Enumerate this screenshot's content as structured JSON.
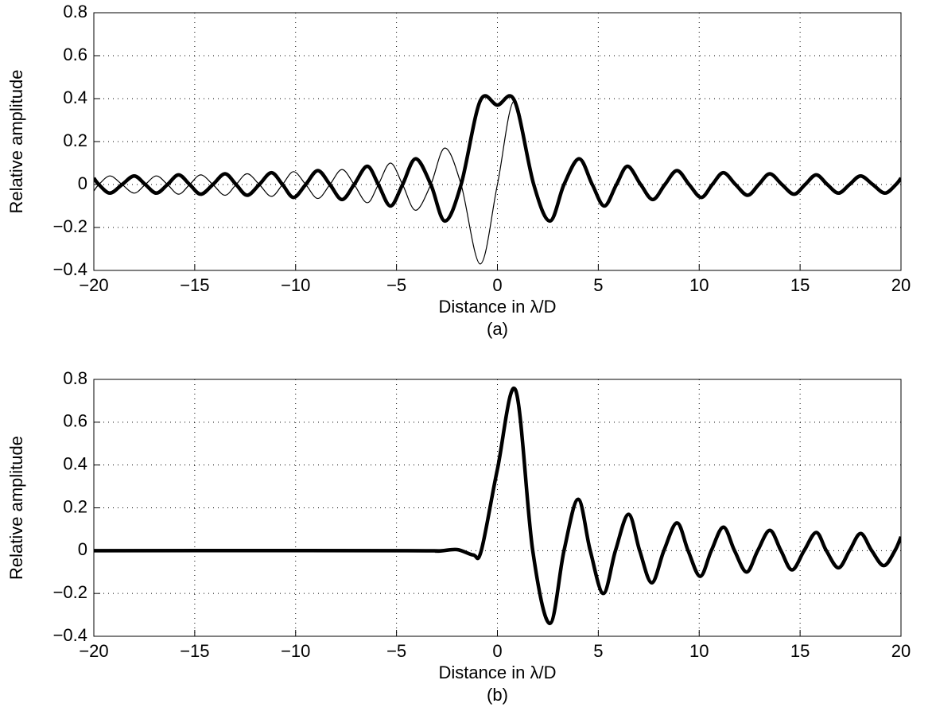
{
  "chart_data": [
    {
      "type": "line",
      "xlabel": "Distance in λ/D",
      "ylabel": "Relative amplitude",
      "caption": "(a)",
      "xlim": [
        -20,
        20
      ],
      "ylim": [
        -0.4,
        0.8
      ],
      "grid": true,
      "xticks": [
        {
          "value": -20,
          "label": "−20"
        },
        {
          "value": -15,
          "label": "−15"
        },
        {
          "value": -10,
          "label": "−10"
        },
        {
          "value": -5,
          "label": "−5"
        },
        0,
        5,
        10,
        15,
        20
      ],
      "yticks": [
        {
          "value": -0.4,
          "label": "−0.4"
        },
        {
          "value": -0.2,
          "label": "−0.2"
        },
        0,
        0.2,
        0.4,
        0.6,
        0.8
      ],
      "x": [
        -20,
        -19.75,
        -19.2,
        -18.6,
        -18,
        -17.45,
        -16.9,
        -16.35,
        -15.8,
        -15.25,
        -14.7,
        -14.1,
        -13.5,
        -12.95,
        -12.4,
        -11.8,
        -11.2,
        -10.65,
        -10.1,
        -9.5,
        -8.9,
        -8.3,
        -7.7,
        -7.1,
        -6.45,
        -5.9,
        -5.3,
        -4.7,
        -4.05,
        -3.3,
        -2.6,
        -1.8,
        -0.85,
        0,
        0.85,
        1.8,
        2.6,
        3.3,
        4.05,
        4.7,
        5.3,
        5.9,
        6.45,
        7.1,
        7.7,
        8.3,
        8.9,
        9.5,
        10.1,
        10.65,
        11.2,
        11.8,
        12.4,
        12.95,
        13.5,
        14.1,
        14.7,
        15.25,
        15.8,
        16.35,
        16.9,
        17.45,
        18,
        18.6,
        19.2,
        19.75,
        20
      ],
      "series": [
        {
          "color": "#000000",
          "width": 1.2,
          "values": [
            -0.03,
            0,
            0.04,
            0,
            -0.04,
            0,
            0.04,
            0,
            -0.045,
            0,
            0.045,
            0,
            -0.05,
            0,
            0.05,
            0,
            -0.055,
            0,
            0.06,
            0,
            -0.065,
            0,
            0.07,
            0,
            -0.085,
            0,
            0.1,
            0,
            -0.12,
            0,
            0.17,
            0,
            -0.37,
            0,
            0.39,
            0,
            -0.17,
            0,
            0.12,
            0,
            -0.1,
            0,
            0.085,
            0,
            -0.07,
            0,
            0.065,
            0,
            -0.06,
            0,
            0.055,
            0,
            -0.05,
            0,
            0.05,
            0,
            -0.045,
            0,
            0.045,
            0,
            -0.04,
            0,
            0.04,
            0,
            -0.04,
            0,
            0.03
          ]
        },
        {
          "color": "#000000",
          "width": 4.5,
          "values": [
            0.03,
            0,
            -0.04,
            0,
            0.04,
            0,
            -0.04,
            0,
            0.045,
            0,
            -0.045,
            0,
            0.05,
            0,
            -0.05,
            0,
            0.055,
            0,
            -0.06,
            0,
            0.065,
            0,
            -0.07,
            0,
            0.085,
            0,
            -0.1,
            0,
            0.12,
            0,
            -0.17,
            0,
            0.39,
            0.37,
            0.39,
            0,
            -0.17,
            0,
            0.12,
            0,
            -0.1,
            0,
            0.085,
            0,
            -0.07,
            0,
            0.065,
            0,
            -0.06,
            0,
            0.055,
            0,
            -0.05,
            0,
            0.05,
            0,
            -0.045,
            0,
            0.045,
            0,
            -0.04,
            0,
            0.04,
            0,
            -0.04,
            0,
            0.03
          ]
        }
      ]
    },
    {
      "type": "line",
      "xlabel": "Distance in λ/D",
      "ylabel": "Relative amplitude",
      "caption": "(b)",
      "xlim": [
        -20,
        20
      ],
      "ylim": [
        -0.4,
        0.8
      ],
      "grid": true,
      "xticks": [
        {
          "value": -20,
          "label": "−20"
        },
        {
          "value": -15,
          "label": "−15"
        },
        {
          "value": -10,
          "label": "−10"
        },
        {
          "value": -5,
          "label": "−5"
        },
        0,
        5,
        10,
        15,
        20
      ],
      "yticks": [
        {
          "value": -0.4,
          "label": "−0.4"
        },
        {
          "value": -0.2,
          "label": "−0.2"
        },
        0,
        0.2,
        0.4,
        0.6,
        0.8
      ],
      "x": [
        -20,
        -4.5,
        -3,
        -2,
        -1.2,
        -0.8,
        0,
        0.9,
        1.75,
        2.6,
        3.3,
        4.0,
        4.6,
        5.25,
        5.85,
        6.5,
        7.05,
        7.65,
        8.25,
        8.9,
        9.45,
        10.05,
        10.6,
        11.2,
        11.75,
        12.35,
        12.9,
        13.5,
        14.05,
        14.6,
        15.2,
        15.8,
        16.3,
        16.9,
        17.45,
        18,
        18.55,
        19.15,
        19.7,
        20
      ],
      "series": [
        {
          "color": "#000000",
          "width": 4.5,
          "values": [
            0,
            0,
            -0.002,
            0.005,
            -0.02,
            0,
            0.38,
            0.75,
            0,
            -0.34,
            0,
            0.24,
            0,
            -0.2,
            0,
            0.17,
            0,
            -0.15,
            0,
            0.13,
            0,
            -0.12,
            0,
            0.11,
            0,
            -0.1,
            0,
            0.095,
            0,
            -0.09,
            0,
            0.085,
            0,
            -0.08,
            0,
            0.08,
            0,
            -0.07,
            0,
            0.065
          ]
        }
      ]
    }
  ]
}
